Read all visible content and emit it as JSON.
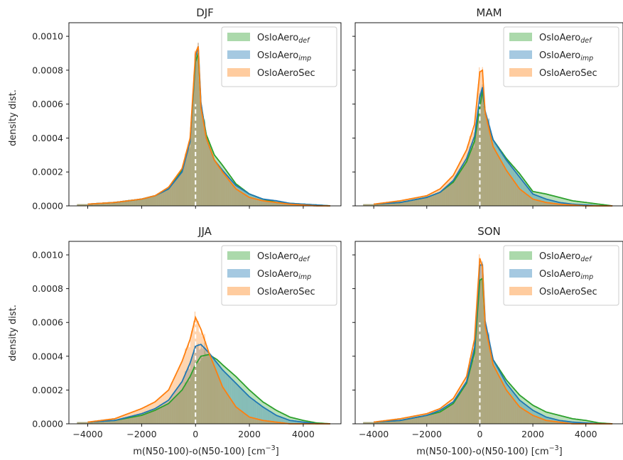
{
  "figure": {
    "xlabel": "m(N50-100)-o(N50-100) [cm",
    "xlabel_sup": "−3",
    "xlabel_end": "]",
    "ylabel": "density dist."
  },
  "colors": {
    "def": "#2ca02c",
    "imp": "#1f77b4",
    "sec": "#ff7f0e",
    "hist_overlap": "#a08a5a",
    "zero_line": "#ffffff"
  },
  "chart_data": [
    {
      "type": "area",
      "title": "DJF",
      "xlim": [
        -4700,
        5400
      ],
      "ylim": [
        0,
        0.00108
      ],
      "xticks": [
        -4000,
        -2000,
        0,
        2000,
        4000
      ],
      "yticks": [
        0,
        0.0002,
        0.0004,
        0.0006,
        0.0008,
        0.001
      ],
      "ytick_labels": [
        "0.0000",
        "0.0002",
        "0.0004",
        "0.0006",
        "0.0008",
        "0.0010"
      ],
      "legend": "top-right",
      "series": [
        {
          "name": "OsloAero",
          "sub": "def",
          "key": "def",
          "x": [
            -4000,
            -3000,
            -2000,
            -1500,
            -1000,
            -500,
            -200,
            0,
            100,
            200,
            400,
            700,
            1000,
            1500,
            2000,
            2500,
            3000,
            3500,
            4000,
            4500,
            5000
          ],
          "y": [
            1e-05,
            2e-05,
            4e-05,
            6e-05,
            0.0001,
            0.00021,
            0.00039,
            0.00085,
            0.0009,
            0.0006,
            0.00042,
            0.0003,
            0.00024,
            0.00013,
            7e-05,
            4e-05,
            2e-05,
            1.5e-05,
            1e-05,
            5e-06,
            0
          ]
        },
        {
          "name": "OsloAero",
          "sub": "imp",
          "key": "imp",
          "x": [
            -4000,
            -3000,
            -2000,
            -1500,
            -1000,
            -500,
            -200,
            0,
            100,
            200,
            400,
            700,
            1000,
            1500,
            2000,
            2500,
            3000,
            3500,
            4000,
            4500,
            5000
          ],
          "y": [
            1e-05,
            2e-05,
            4e-05,
            6e-05,
            0.0001,
            0.0002,
            0.00038,
            0.00088,
            0.00094,
            0.00061,
            0.0004,
            0.00027,
            0.00021,
            0.00012,
            7e-05,
            4e-05,
            3e-05,
            1.5e-05,
            1e-05,
            5e-06,
            0
          ]
        },
        {
          "name": "OsloAeroSec",
          "sub": "",
          "key": "sec",
          "x": [
            -4000,
            -3000,
            -2000,
            -1500,
            -1000,
            -500,
            -200,
            0,
            100,
            200,
            400,
            700,
            1000,
            1500,
            2000,
            2500,
            3000,
            3500,
            4000,
            4500,
            5000
          ],
          "y": [
            1e-05,
            2e-05,
            4e-05,
            6e-05,
            0.00011,
            0.00022,
            0.0004,
            0.0009,
            0.00094,
            0.00058,
            0.0004,
            0.00027,
            0.0002,
            0.0001,
            5e-05,
            3e-05,
            2e-05,
            1e-05,
            5e-06,
            0,
            0
          ]
        }
      ]
    },
    {
      "type": "area",
      "title": "MAM",
      "xlim": [
        -4700,
        5400
      ],
      "ylim": [
        0,
        0.00108
      ],
      "xticks": [
        -4000,
        -2000,
        0,
        2000,
        4000
      ],
      "yticks": [
        0,
        0.0002,
        0.0004,
        0.0006,
        0.0008,
        0.001
      ],
      "ytick_labels": [
        "0.0000",
        "0.0002",
        "0.0004",
        "0.0006",
        "0.0008",
        "0.0010"
      ],
      "legend": "top-right",
      "series": [
        {
          "name": "OsloAero",
          "sub": "def",
          "key": "def",
          "x": [
            -4000,
            -3000,
            -2000,
            -1500,
            -1000,
            -500,
            -200,
            0,
            100,
            200,
            500,
            1000,
            1500,
            2000,
            2500,
            3000,
            3500,
            4000,
            4500,
            5000
          ],
          "y": [
            1e-05,
            2e-05,
            5e-05,
            8e-05,
            0.00014,
            0.00026,
            0.00038,
            0.00058,
            0.00068,
            0.00055,
            0.00039,
            0.00028,
            0.00019,
            8.5e-05,
            7e-05,
            5e-05,
            3e-05,
            2e-05,
            1e-05,
            0
          ]
        },
        {
          "name": "OsloAero",
          "sub": "imp",
          "key": "imp",
          "x": [
            -4000,
            -3000,
            -2000,
            -1500,
            -1000,
            -500,
            -200,
            0,
            100,
            200,
            500,
            1000,
            1500,
            2000,
            2500,
            3000,
            3500,
            4000,
            4500,
            5000
          ],
          "y": [
            1e-05,
            2e-05,
            5e-05,
            8e-05,
            0.00015,
            0.00028,
            0.00041,
            0.00064,
            0.0007,
            0.00056,
            0.00039,
            0.00027,
            0.00017,
            7e-05,
            4e-05,
            2e-05,
            1e-05,
            5e-06,
            0,
            0
          ]
        },
        {
          "name": "OsloAeroSec",
          "sub": "",
          "key": "sec",
          "x": [
            -4000,
            -3000,
            -2000,
            -1500,
            -1000,
            -500,
            -200,
            0,
            100,
            200,
            500,
            1000,
            1500,
            2000,
            2500,
            3000,
            3500,
            4000,
            4500,
            5000
          ],
          "y": [
            1e-05,
            3e-05,
            6e-05,
            0.0001,
            0.00018,
            0.00033,
            0.00048,
            0.00079,
            0.0008,
            0.00055,
            0.00035,
            0.00021,
            0.0001,
            4e-05,
            2e-05,
            1e-05,
            5e-06,
            0,
            0,
            0
          ]
        }
      ]
    },
    {
      "type": "area",
      "title": "JJA",
      "xlim": [
        -4700,
        5400
      ],
      "ylim": [
        0,
        0.00108
      ],
      "xticks": [
        -4000,
        -2000,
        0,
        2000,
        4000
      ],
      "yticks": [
        0,
        0.0002,
        0.0004,
        0.0006,
        0.0008,
        0.001
      ],
      "ytick_labels": [
        "0.0000",
        "0.0002",
        "0.0004",
        "0.0006",
        "0.0008",
        "0.0010"
      ],
      "legend": "top-right",
      "series": [
        {
          "name": "OsloAero",
          "sub": "def",
          "key": "def",
          "x": [
            -4000,
            -3000,
            -2000,
            -1500,
            -1000,
            -500,
            -200,
            0,
            200,
            500,
            800,
            1000,
            1500,
            2000,
            2500,
            3000,
            3500,
            4000,
            4500,
            5000
          ],
          "y": [
            1e-05,
            2e-05,
            5e-05,
            8e-05,
            0.00012,
            0.0002,
            0.00028,
            0.00035,
            0.0004,
            0.00041,
            0.00038,
            0.00035,
            0.00028,
            0.0002,
            0.00013,
            8e-05,
            4e-05,
            2e-05,
            5e-06,
            0
          ]
        },
        {
          "name": "OsloAero",
          "sub": "imp",
          "key": "imp",
          "x": [
            -4000,
            -3000,
            -2000,
            -1500,
            -1000,
            -500,
            -200,
            0,
            200,
            500,
            800,
            1000,
            1500,
            2000,
            2500,
            3000,
            3500,
            4000,
            4500,
            5000
          ],
          "y": [
            1e-05,
            2e-05,
            6e-05,
            9e-05,
            0.00014,
            0.00025,
            0.00036,
            0.00046,
            0.00047,
            0.00042,
            0.00036,
            0.00032,
            0.00024,
            0.00016,
            0.0001,
            5e-05,
            2e-05,
            1e-05,
            0,
            0
          ]
        },
        {
          "name": "OsloAeroSec",
          "sub": "",
          "key": "sec",
          "x": [
            -4000,
            -3000,
            -2000,
            -1500,
            -1000,
            -500,
            -200,
            0,
            200,
            500,
            800,
            1000,
            1500,
            2000,
            2500,
            3000,
            3500,
            4000,
            4500,
            5000
          ],
          "y": [
            1e-05,
            3e-05,
            9e-05,
            0.00013,
            0.0002,
            0.00037,
            0.0005,
            0.00063,
            0.00056,
            0.00042,
            0.0003,
            0.00022,
            0.0001,
            4e-05,
            2e-05,
            1e-05,
            0,
            0,
            0,
            0
          ]
        }
      ]
    },
    {
      "type": "area",
      "title": "SON",
      "xlim": [
        -4700,
        5400
      ],
      "ylim": [
        0,
        0.00108
      ],
      "xticks": [
        -4000,
        -2000,
        0,
        2000,
        4000
      ],
      "yticks": [
        0,
        0.0002,
        0.0004,
        0.0006,
        0.0008,
        0.001
      ],
      "ytick_labels": [
        "0.0000",
        "0.0002",
        "0.0004",
        "0.0006",
        "0.0008",
        "0.0010"
      ],
      "legend": "top-right",
      "series": [
        {
          "name": "OsloAero",
          "sub": "def",
          "key": "def",
          "x": [
            -4000,
            -3000,
            -2000,
            -1500,
            -1000,
            -500,
            -200,
            0,
            100,
            200,
            500,
            1000,
            1500,
            2000,
            2500,
            3000,
            3500,
            4000,
            4500,
            5000
          ],
          "y": [
            1e-05,
            2e-05,
            5e-05,
            7e-05,
            0.00012,
            0.00024,
            0.00042,
            0.00085,
            0.00086,
            0.00059,
            0.00038,
            0.00026,
            0.00017,
            0.00011,
            7e-05,
            5e-05,
            3e-05,
            2e-05,
            5e-06,
            0
          ]
        },
        {
          "name": "OsloAero",
          "sub": "imp",
          "key": "imp",
          "x": [
            -4000,
            -3000,
            -2000,
            -1500,
            -1000,
            -500,
            -200,
            0,
            100,
            200,
            500,
            1000,
            1500,
            2000,
            2500,
            3000,
            3500,
            4000,
            4500,
            5000
          ],
          "y": [
            1e-05,
            2e-05,
            5e-05,
            8e-05,
            0.00013,
            0.00025,
            0.00045,
            0.00094,
            0.00094,
            0.00061,
            0.00038,
            0.00024,
            0.00014,
            8e-05,
            4e-05,
            2e-05,
            1e-05,
            5e-06,
            0,
            0
          ]
        },
        {
          "name": "OsloAeroSec",
          "sub": "",
          "key": "sec",
          "x": [
            -4000,
            -3000,
            -2000,
            -1500,
            -1000,
            -500,
            -200,
            0,
            100,
            200,
            500,
            1000,
            1500,
            2000,
            2500,
            3000,
            3500,
            4000,
            4500,
            5000
          ],
          "y": [
            1e-05,
            3e-05,
            6e-05,
            9e-05,
            0.00015,
            0.00028,
            0.0005,
            0.00098,
            0.00093,
            0.00058,
            0.00035,
            0.0002,
            0.0001,
            5e-05,
            2e-05,
            1e-05,
            0,
            0,
            0,
            0
          ]
        }
      ]
    }
  ]
}
